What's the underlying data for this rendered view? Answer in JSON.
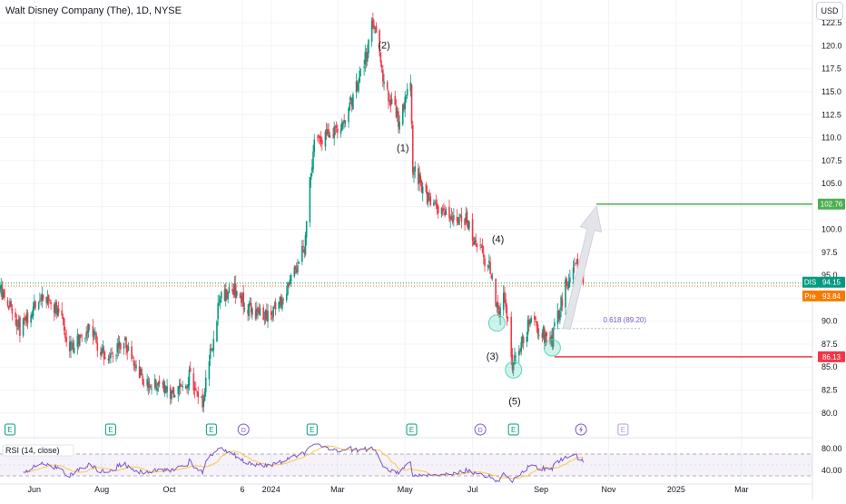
{
  "title": "Walt Disney Company (The), 1D, NYSE",
  "currency_button": "USD",
  "colors": {
    "up": "#089981",
    "down": "#f23645",
    "target_line": "#4caf50",
    "stop_line": "#f23645",
    "last_price": "#089981",
    "pre_price": "#f57c00",
    "rsi_line": "#7e57c2",
    "rsi_ma": "#f7c948",
    "earnings": "#089981",
    "dividend": "#7e57c2"
  },
  "chart_data": {
    "type": "candlestick",
    "symbol": "DIS",
    "y_range": [
      78,
      124
    ],
    "y_ticks": [
      80.0,
      82.5,
      85.0,
      87.5,
      90.0,
      92.5,
      95.0,
      97.5,
      100.0,
      102.5,
      105.0,
      107.5,
      110.0,
      112.5,
      115.0,
      117.5,
      120.0,
      122.5
    ],
    "x_tick_labels": [
      "Jun",
      "Aug",
      "Oct",
      "6",
      "2024",
      "Mar",
      "May",
      "Jul",
      "Sep",
      "Nov",
      "2025",
      "Mar"
    ],
    "price_path": [
      {
        "date": "2023-05-01",
        "close": 93.5
      },
      {
        "date": "2023-05-20",
        "close": 89.0
      },
      {
        "date": "2023-06-05",
        "close": 93.0
      },
      {
        "date": "2023-06-20",
        "close": 91.5
      },
      {
        "date": "2023-07-05",
        "close": 87.0
      },
      {
        "date": "2023-07-20",
        "close": 89.5
      },
      {
        "date": "2023-08-05",
        "close": 85.5
      },
      {
        "date": "2023-08-20",
        "close": 88.0
      },
      {
        "date": "2023-09-05",
        "close": 84.0
      },
      {
        "date": "2023-09-20",
        "close": 83.0
      },
      {
        "date": "2023-10-05",
        "close": 81.5
      },
      {
        "date": "2023-10-20",
        "close": 84.0
      },
      {
        "date": "2023-10-31",
        "close": 81.0
      },
      {
        "date": "2023-11-15",
        "close": 92.0
      },
      {
        "date": "2023-11-25",
        "close": 94.0
      },
      {
        "date": "2023-12-10",
        "close": 91.5
      },
      {
        "date": "2023-12-31",
        "close": 90.5
      },
      {
        "date": "2024-01-15",
        "close": 93.5
      },
      {
        "date": "2024-01-31",
        "close": 98.0
      },
      {
        "date": "2024-02-08",
        "close": 109.0
      },
      {
        "date": "2024-02-28",
        "close": 110.5
      },
      {
        "date": "2024-03-15",
        "close": 114.0
      },
      {
        "date": "2024-03-28",
        "close": 119.5
      },
      {
        "date": "2024-04-02",
        "close": 122.5
      },
      {
        "date": "2024-04-12",
        "close": 116.0
      },
      {
        "date": "2024-04-25",
        "close": 112.0
      },
      {
        "date": "2024-05-06",
        "close": 115.5
      },
      {
        "date": "2024-05-08",
        "close": 107.0
      },
      {
        "date": "2024-05-25",
        "close": 102.5
      },
      {
        "date": "2024-06-10",
        "close": 101.5
      },
      {
        "date": "2024-06-25",
        "close": 101.0
      },
      {
        "date": "2024-07-05",
        "close": 98.0
      },
      {
        "date": "2024-07-16",
        "close": 96.0
      },
      {
        "date": "2024-07-24",
        "close": 90.5
      },
      {
        "date": "2024-07-30",
        "close": 93.0
      },
      {
        "date": "2024-08-06",
        "close": 85.5
      },
      {
        "date": "2024-08-13",
        "close": 87.5
      },
      {
        "date": "2024-08-22",
        "close": 90.0
      },
      {
        "date": "2024-09-03",
        "close": 88.5
      },
      {
        "date": "2024-09-09",
        "close": 87.0
      },
      {
        "date": "2024-09-20",
        "close": 92.5
      },
      {
        "date": "2024-09-30",
        "close": 96.5
      },
      {
        "date": "2024-10-09",
        "close": 94.15
      }
    ],
    "wave_labels": [
      {
        "text": "(2)",
        "date": "2024-04-12",
        "price": 119.7
      },
      {
        "text": "(1)",
        "date": "2024-04-29",
        "price": 108.5
      },
      {
        "text": "(4)",
        "date": "2024-07-24",
        "price": 98.6
      },
      {
        "text": "(3)",
        "date": "2024-07-19",
        "price": 85.8
      },
      {
        "text": "(5)",
        "date": "2024-08-08",
        "price": 80.9
      }
    ],
    "circles": [
      {
        "date": "2024-07-23",
        "price": 89.8
      },
      {
        "date": "2024-08-07",
        "price": 84.7
      },
      {
        "date": "2024-09-11",
        "price": 87.1
      }
    ],
    "levels": {
      "target": 102.76,
      "stop": 86.13,
      "last_price": 94.15,
      "pre_price": 93.84,
      "fib_price": 89.2,
      "fib_label": "0.618 (89.20)"
    },
    "arrow": {
      "from_date": "2024-09-24",
      "from_price": 89.2,
      "to_date": "2024-10-21",
      "to_price": 102.5
    },
    "events": [
      {
        "type": "E",
        "date": "2023-05-10"
      },
      {
        "type": "E",
        "date": "2023-08-09"
      },
      {
        "type": "E",
        "date": "2023-11-08"
      },
      {
        "type": "D",
        "date": "2023-12-07"
      },
      {
        "type": "E",
        "date": "2024-02-07"
      },
      {
        "type": "E",
        "date": "2024-05-07"
      },
      {
        "type": "D",
        "date": "2024-07-08"
      },
      {
        "type": "E",
        "date": "2024-08-07"
      },
      {
        "type": "S",
        "date": "2024-10-07"
      },
      {
        "type": "E",
        "date": "2024-11-14",
        "future": true
      }
    ],
    "rsi": {
      "label": "RSI (14, close)",
      "ticks": [
        80.0,
        40.0
      ],
      "upper": 70,
      "lower": 30
    }
  },
  "axis_labels": {
    "last_symbol": "DIS",
    "last_value": "94.15",
    "pre_symbol": "Pre",
    "pre_value": "93.84",
    "target_value": "102.76",
    "stop_value": "86.13"
  }
}
